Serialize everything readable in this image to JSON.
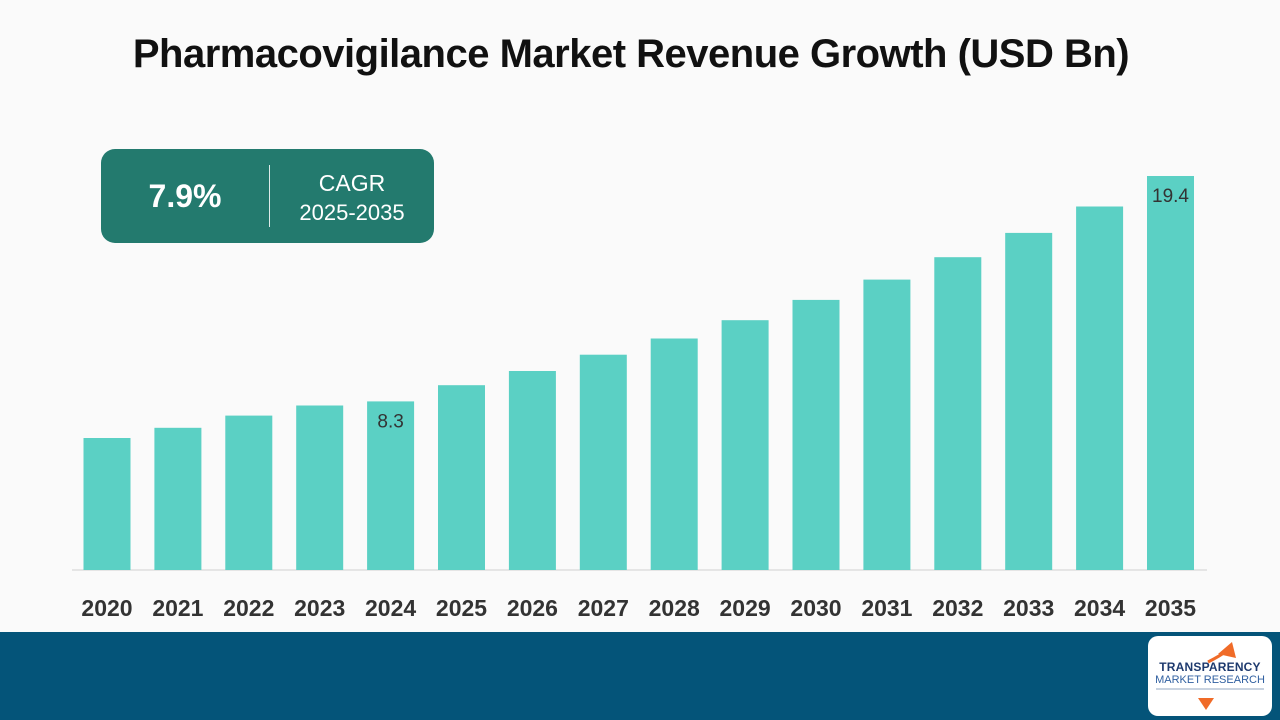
{
  "title": "Pharmacovigilance Market Revenue Growth (USD Bn)",
  "cagr": {
    "value": "7.9%",
    "label": "CAGR",
    "period": "2025-2035"
  },
  "logo": {
    "line1": "TRANSPARENCY",
    "line2": "MARKET RESEARCH"
  },
  "colors": {
    "bar": "#5bd0c4",
    "box": "#237a6e",
    "footer": "#045479",
    "logo_arrow": "#f06b28"
  },
  "chart_data": {
    "type": "bar",
    "title": "Pharmacovigilance Market Revenue Growth (USD Bn)",
    "categories": [
      "2020",
      "2021",
      "2022",
      "2023",
      "2024",
      "2025",
      "2026",
      "2027",
      "2028",
      "2029",
      "2030",
      "2031",
      "2032",
      "2033",
      "2034",
      "2035"
    ],
    "values": [
      6.5,
      7.0,
      7.6,
      8.1,
      8.3,
      9.1,
      9.8,
      10.6,
      11.4,
      12.3,
      13.3,
      14.3,
      15.4,
      16.6,
      17.9,
      19.4
    ],
    "data_labels": [
      {
        "index": 4,
        "text": "8.3"
      },
      {
        "index": 15,
        "text": "19.4"
      }
    ],
    "xlabel": "",
    "ylabel": "",
    "ylim": [
      0,
      19.4
    ],
    "grid": false,
    "legend": "none"
  }
}
